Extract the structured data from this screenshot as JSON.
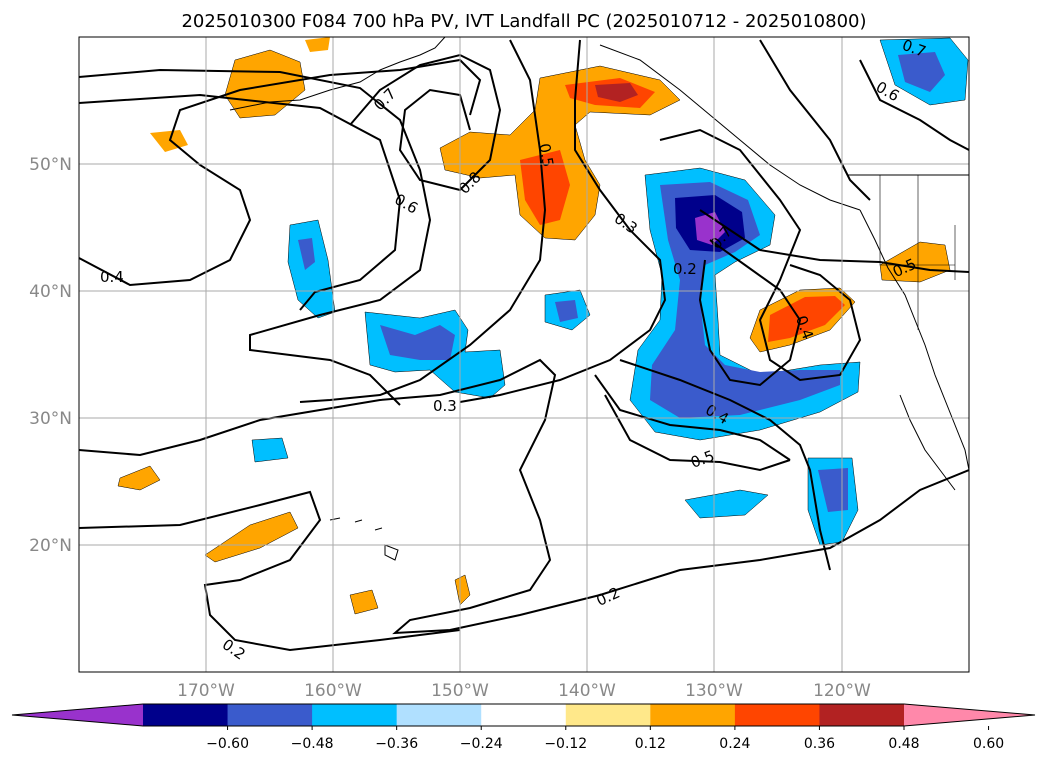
{
  "title": "2025010300 F084 700 hPa PV, IVT Landfall PC (2025010712 - 2025010800)",
  "map": {
    "projection": "PlateCarree",
    "lon_range": [
      "180°",
      "110°W"
    ],
    "lat_range": [
      "10°N",
      "60°N"
    ],
    "grid": true,
    "lat_labels": [
      "50°N",
      "40°N",
      "30°N",
      "20°N"
    ],
    "lon_labels": [
      "170°W",
      "160°W",
      "150°W",
      "140°W",
      "130°W",
      "120°W"
    ]
  },
  "contours": {
    "color": "#000000",
    "labels": [
      "0.7",
      "0.6",
      "0.4",
      "0.8",
      "0.5",
      "0.3",
      "0.2",
      "0.3",
      "0.4",
      "0.5",
      "0.2",
      "0.7",
      "0.6",
      "0.2",
      "0.5",
      "0.7",
      "0.4"
    ]
  },
  "colorbar": {
    "orientation": "horizontal",
    "extend": "both",
    "ticks": [
      "−0.60",
      "−0.48",
      "−0.36",
      "−0.24",
      "−0.12",
      "0.12",
      "0.24",
      "0.36",
      "0.48",
      "0.60"
    ],
    "colors": [
      "#9932cc",
      "#00008b",
      "#3a5bcc",
      "#00bfff",
      "#b0e0ff",
      "#ffffff",
      "#ffe88a",
      "#ffa500",
      "#ff4500",
      "#b22222",
      "#ff88aa"
    ]
  }
}
